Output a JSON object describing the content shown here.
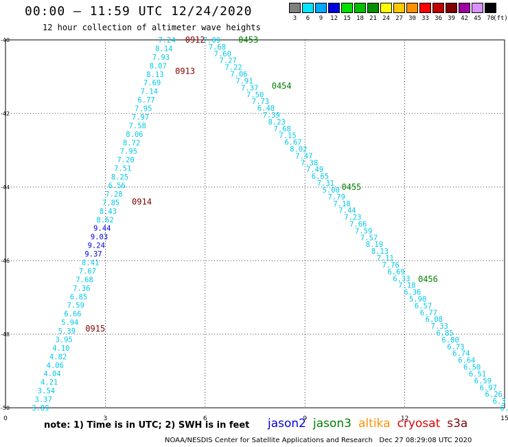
{
  "title": "00:00 – 11:59 UTC 12/24/2020",
  "subtitle": "12 hour collection of altimeter wave heights",
  "legend": {
    "unit": "(ft)",
    "bins": [
      {
        "label": "3",
        "color": "#7f7f7f"
      },
      {
        "label": "6",
        "color": "#00e5ff"
      },
      {
        "label": "9",
        "color": "#00a8ff"
      },
      {
        "label": "12",
        "color": "#0000e0"
      },
      {
        "label": "15",
        "color": "#00e000"
      },
      {
        "label": "18",
        "color": "#00c000"
      },
      {
        "label": "21",
        "color": "#009000"
      },
      {
        "label": "24",
        "color": "#ffff00"
      },
      {
        "label": "27",
        "color": "#ffc800"
      },
      {
        "label": "30",
        "color": "#ff9000"
      },
      {
        "label": "33",
        "color": "#ff0000"
      },
      {
        "label": "36",
        "color": "#c00000"
      },
      {
        "label": "39",
        "color": "#800000"
      },
      {
        "label": "42",
        "color": "#a000a0"
      },
      {
        "label": "45",
        "color": "#d890ff"
      },
      {
        "label": "70",
        "color": "#000000"
      }
    ]
  },
  "map": {
    "lon_ticks": [
      "0",
      "3",
      "6",
      "9",
      "12",
      "15"
    ],
    "lat_ticks": [
      "-40",
      "-42",
      "-44",
      "-46",
      "-48",
      "-50"
    ]
  },
  "tracks": [
    {
      "start": [
        4.85,
        -40.0
      ],
      "end": [
        1.05,
        -50.0
      ],
      "values": [
        "7.24",
        "8.14",
        "7.93",
        "8.07",
        "8.13",
        "7.69",
        "7.14",
        "6.77",
        "7.95",
        "7.97",
        "7.58",
        "8.06",
        "8.72",
        "7.95",
        "7.20",
        "7.51",
        "8.25",
        "6.56",
        "7.28",
        "7.85",
        "8.43",
        "8.62",
        "9.44",
        "9.03",
        "9.24",
        "9.37",
        "8.41",
        "7.67",
        "7.68",
        "7.36",
        "6.85",
        "7.59",
        "6.66",
        "5.94",
        "5.39",
        "3.95",
        "4.10",
        "4.82",
        "4.06",
        "4.04",
        "4.21",
        "3.54",
        "3.37",
        "3.89"
      ],
      "times": [
        {
          "label": "0912",
          "lon": 5.4,
          "lat": -40.0,
          "color": "#800000"
        },
        {
          "label": "0913",
          "lon": 5.1,
          "lat": -40.85,
          "color": "#800000"
        },
        {
          "label": "0914",
          "lon": 3.8,
          "lat": -44.4,
          "color": "#800000"
        },
        {
          "label": "0915",
          "lon": 2.4,
          "lat": -47.85,
          "color": "#800000"
        }
      ]
    },
    {
      "start": [
        6.2,
        -40.0
      ],
      "end": [
        15.0,
        -50.0
      ],
      "values": [
        "7.09",
        "7.68",
        "7.60",
        "7.27",
        "7.22",
        "7.06",
        "7.91",
        "7.37",
        "7.50",
        "7.73",
        "6.48",
        "7.39",
        "8.23",
        "7.68",
        "7.15",
        "6.67",
        "8.02",
        "7.47",
        "7.38",
        "7.49",
        "6.65",
        "7.31",
        "5.00",
        "7.79",
        "7.18",
        "7.44",
        "7.23",
        "7.66",
        "7.59",
        "7.57",
        "8.19",
        "8.13",
        "7.11",
        "7.76",
        "6.69",
        "6.33",
        "7.18",
        "6.36",
        "5.90",
        "6.57",
        "6.77",
        "6.08",
        "7.33",
        "6.85",
        "6.80",
        "6.73",
        "6.74",
        "6.64",
        "6.50",
        "6.51",
        "6.59",
        "6.97",
        "6.26",
        "6.3",
        "6."
      ],
      "times": [
        {
          "label": "0453",
          "lon": 7.0,
          "lat": -40.0,
          "color": "#008000"
        },
        {
          "label": "0454",
          "lon": 8.0,
          "lat": -41.25,
          "color": "#008000"
        },
        {
          "label": "0455",
          "lon": 10.1,
          "lat": -44.0,
          "color": "#008000"
        },
        {
          "label": "0456",
          "lon": 12.4,
          "lat": -46.5,
          "color": "#008000"
        }
      ]
    }
  ],
  "note": "note: 1) Time is in UTC; 2) SWH is in feet",
  "satellites": [
    {
      "name": "jason2",
      "color": "#0000e0"
    },
    {
      "name": "jason3",
      "color": "#008000"
    },
    {
      "name": "altika",
      "color": "#ff9000"
    },
    {
      "name": "cryosat",
      "color": "#e00000"
    },
    {
      "name": "s3a",
      "color": "#800000"
    }
  ],
  "credit": "NOAA/NESDIS Center for Satellite Applications and Research   Dec 27 08:29:08 UTC 2020"
}
